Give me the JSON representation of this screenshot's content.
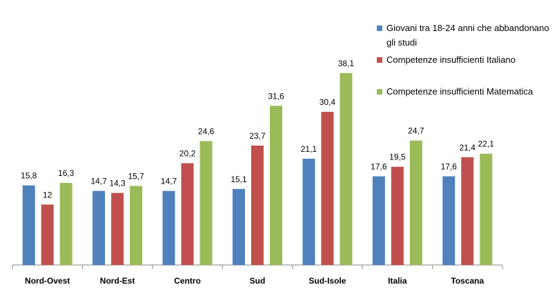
{
  "chart_data": {
    "type": "bar",
    "categories": [
      "Nord-Ovest",
      "Nord-Est",
      "Centro",
      "Sud",
      "Sud-Isole",
      "Italia",
      "Toscana"
    ],
    "series": [
      {
        "name": "Giovani tra 18-24 anni che abbandonano gli studi",
        "color": "#4f81bd",
        "values": [
          15.8,
          14.7,
          14.7,
          15.1,
          21.1,
          17.6,
          17.6
        ],
        "value_labels": [
          "15,8",
          "14,7",
          "14,7",
          "15,1",
          "21,1",
          "17,6",
          "17,6"
        ]
      },
      {
        "name": "Competenze insufficienti Italiano",
        "color": "#c0504d",
        "values": [
          12,
          14.3,
          20.2,
          23.7,
          30.4,
          19.5,
          21.4
        ],
        "value_labels": [
          "12",
          "14,3",
          "20,2",
          "23,7",
          "30,4",
          "19,5",
          "21,4"
        ]
      },
      {
        "name": "Competenze insufficienti Matematica",
        "color": "#9bbb59",
        "values": [
          16.3,
          15.7,
          24.6,
          31.6,
          38.1,
          24.7,
          22.1
        ],
        "value_labels": [
          "16,3",
          "15,7",
          "24,6",
          "31,6",
          "38,1",
          "24,7",
          "22,1"
        ]
      }
    ],
    "ylim": [
      0,
      40
    ]
  }
}
